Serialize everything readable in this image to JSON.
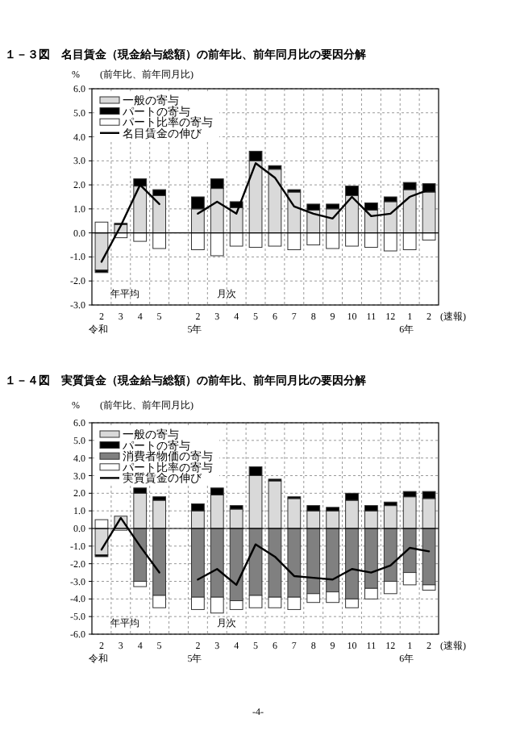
{
  "chart_data": [
    {
      "type": "bar",
      "stacked": true,
      "title": "１－３図　名目賃金（現金給与総額）の前年比、前年同月比の要因分解",
      "ylabel": "%",
      "subtitle": "(前年比、前年同月比)",
      "categories": [
        "2\n令和",
        "3",
        "4",
        "5",
        null,
        "2\n5年",
        "3",
        "4",
        "5",
        "6",
        "7",
        "8",
        "9",
        "10",
        "11",
        "12",
        "1\n6年",
        "2"
      ],
      "ylim": [
        -3,
        6
      ],
      "yticks": [
        {
          "value": -3,
          "label": "-3.0"
        },
        {
          "value": -2,
          "label": "-2.0"
        },
        {
          "value": -1,
          "label": "-1.0"
        },
        {
          "value": 0,
          "label": "0.0"
        },
        {
          "value": 1,
          "label": "1.0"
        },
        {
          "value": 2,
          "label": "2.0"
        },
        {
          "value": 3,
          "label": "3.0"
        },
        {
          "value": 4,
          "label": "4.0"
        },
        {
          "value": 5,
          "label": "5.0"
        },
        {
          "value": 6,
          "label": "6.0"
        }
      ],
      "grid": true,
      "legend": "top left",
      "series": [
        {
          "name": "一般の寄与",
          "color": "#d9d9d9",
          "values": [
            -1.55,
            0.35,
            1.95,
            1.55,
            null,
            1.0,
            1.85,
            1.05,
            3.0,
            2.65,
            1.7,
            0.95,
            1.0,
            1.55,
            0.95,
            1.3,
            1.8,
            1.7
          ]
        },
        {
          "name": "パートの寄与",
          "color": "#000000",
          "values": [
            -0.1,
            0.05,
            0.3,
            0.25,
            null,
            0.5,
            0.4,
            0.25,
            0.4,
            0.15,
            0.1,
            0.25,
            0.2,
            0.4,
            0.3,
            0.2,
            0.3,
            0.35
          ]
        },
        {
          "name": "パート比率の寄与",
          "color": "#ffffff",
          "values": [
            0.45,
            -0.2,
            -0.35,
            -0.65,
            null,
            -0.7,
            -0.95,
            -0.55,
            -0.6,
            -0.55,
            -0.7,
            -0.5,
            -0.65,
            -0.55,
            -0.6,
            -0.75,
            -0.7,
            -0.3
          ]
        },
        {
          "name": "名目賃金の伸び",
          "type": "line",
          "color": "#000000",
          "values": [
            -1.2,
            0.3,
            2.0,
            1.2,
            null,
            0.8,
            1.3,
            0.8,
            2.9,
            2.3,
            1.1,
            0.8,
            0.6,
            1.5,
            0.7,
            0.8,
            1.5,
            1.8
          ]
        }
      ],
      "annotations": [
        "年平均",
        "月次",
        "(速報)"
      ]
    },
    {
      "type": "bar",
      "stacked": true,
      "title": "１－４図　実質賃金（現金給与総額）の前年比、前年同月比の要因分解",
      "ylabel": "%",
      "subtitle": "(前年比、前年同月比)",
      "categories": [
        "2\n令和",
        "3",
        "4",
        "5",
        null,
        "2\n5年",
        "3",
        "4",
        "5",
        "6",
        "7",
        "8",
        "9",
        "10",
        "11",
        "12",
        "1\n6年",
        "2"
      ],
      "ylim": [
        -6,
        6
      ],
      "yticks": [
        {
          "value": -6,
          "label": "-6.0"
        },
        {
          "value": -5,
          "label": "-5.0"
        },
        {
          "value": -4,
          "label": "-4.0"
        },
        {
          "value": -3,
          "label": "-3.0"
        },
        {
          "value": -2,
          "label": "-2.0"
        },
        {
          "value": -1,
          "label": "-1.0"
        },
        {
          "value": 0,
          "label": "0.0"
        },
        {
          "value": 1,
          "label": "1.0"
        },
        {
          "value": 2,
          "label": "2.0"
        },
        {
          "value": 3,
          "label": "3.0"
        },
        {
          "value": 4,
          "label": "4.0"
        },
        {
          "value": 5,
          "label": "5.0"
        },
        {
          "value": 6,
          "label": "6.0"
        }
      ],
      "grid": true,
      "legend": "top left",
      "series": [
        {
          "name": "一般の寄与",
          "color": "#d9d9d9",
          "values": [
            -1.5,
            0.7,
            2.0,
            1.6,
            null,
            1.0,
            1.9,
            1.1,
            3.0,
            2.7,
            1.7,
            1.0,
            1.0,
            1.6,
            1.0,
            1.3,
            1.8,
            1.7
          ]
        },
        {
          "name": "パートの寄与",
          "color": "#000000",
          "values": [
            -0.1,
            0,
            0.3,
            0.2,
            null,
            0.4,
            0.4,
            0.2,
            0.5,
            0.1,
            0.1,
            0.3,
            0.2,
            0.4,
            0.3,
            0.2,
            0.3,
            0.4
          ]
        },
        {
          "name": "消費者物価の寄与",
          "color": "#808080",
          "values": [
            0,
            0,
            -3.0,
            -3.8,
            null,
            -3.9,
            -3.9,
            -4.1,
            -3.8,
            -3.9,
            -3.9,
            -3.7,
            -3.6,
            -4.0,
            -3.4,
            -3.0,
            -2.5,
            -3.2
          ]
        },
        {
          "name": "パート比率の寄与",
          "color": "#ffffff",
          "values": [
            0.5,
            -0.1,
            -0.3,
            -0.7,
            null,
            -0.7,
            -0.9,
            -0.5,
            -0.7,
            -0.6,
            -0.7,
            -0.5,
            -0.6,
            -0.5,
            -0.6,
            -0.7,
            -0.7,
            -0.3
          ]
        },
        {
          "name": "実質賃金の伸び",
          "type": "line",
          "color": "#000000",
          "values": [
            -1.2,
            0.6,
            -1.0,
            -2.5,
            null,
            -2.9,
            -2.3,
            -3.2,
            -0.9,
            -1.6,
            -2.7,
            -2.8,
            -2.9,
            -2.3,
            -2.5,
            -2.1,
            -1.1,
            -1.3
          ]
        }
      ],
      "annotations": [
        "年平均",
        "月次",
        "(速報)",
        "-4-"
      ]
    }
  ]
}
